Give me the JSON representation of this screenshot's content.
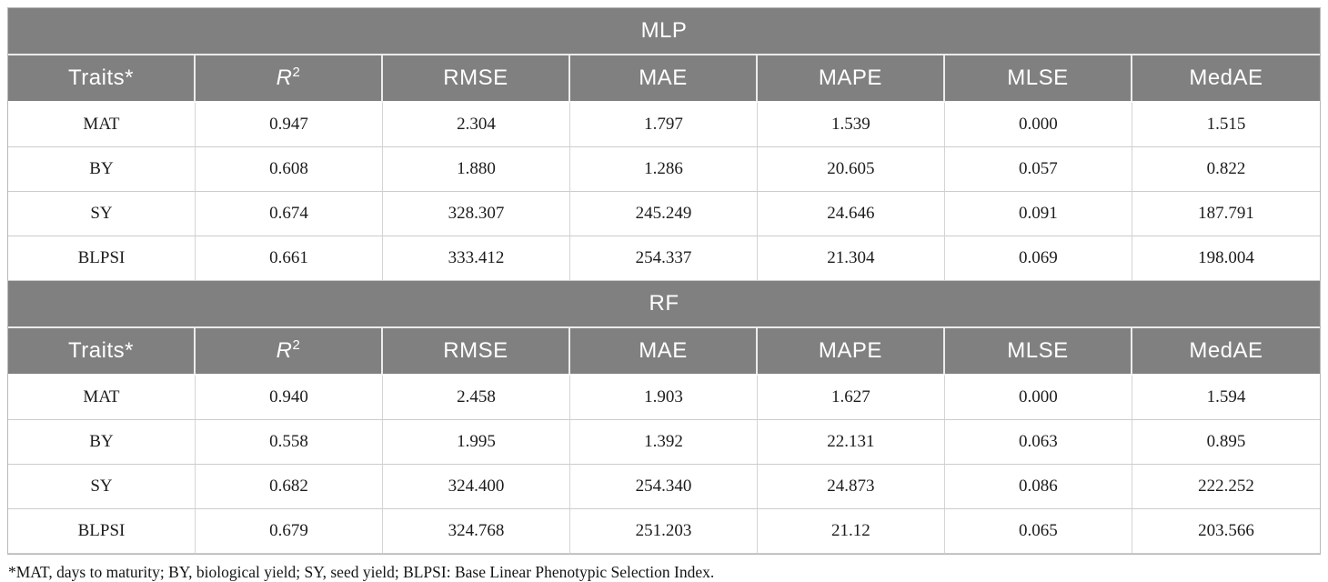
{
  "columns": [
    {
      "label": "Traits*"
    },
    {
      "label": "R",
      "sup": "2"
    },
    {
      "label": "RMSE"
    },
    {
      "label": "MAE"
    },
    {
      "label": "MAPE"
    },
    {
      "label": "MLSE"
    },
    {
      "label": "MedAE"
    }
  ],
  "sections": [
    {
      "title": "MLP",
      "rows": [
        {
          "trait": "MAT",
          "values": [
            "0.947",
            "2.304",
            "1.797",
            "1.539",
            "0.000",
            "1.515"
          ]
        },
        {
          "trait": "BY",
          "values": [
            "0.608",
            "1.880",
            "1.286",
            "20.605",
            "0.057",
            "0.822"
          ]
        },
        {
          "trait": "SY",
          "values": [
            "0.674",
            "328.307",
            "245.249",
            "24.646",
            "0.091",
            "187.791"
          ]
        },
        {
          "trait": "BLPSI",
          "values": [
            "0.661",
            "333.412",
            "254.337",
            "21.304",
            "0.069",
            "198.004"
          ]
        }
      ]
    },
    {
      "title": "RF",
      "rows": [
        {
          "trait": "MAT",
          "values": [
            "0.940",
            "2.458",
            "1.903",
            "1.627",
            "0.000",
            "1.594"
          ]
        },
        {
          "trait": "BY",
          "values": [
            "0.558",
            "1.995",
            "1.392",
            "22.131",
            "0.063",
            "0.895"
          ]
        },
        {
          "trait": "SY",
          "values": [
            "0.682",
            "324.400",
            "254.340",
            "24.873",
            "0.086",
            "222.252"
          ]
        },
        {
          "trait": "BLPSI",
          "values": [
            "0.679",
            "324.768",
            "251.203",
            "21.12",
            "0.065",
            "203.566"
          ]
        }
      ]
    }
  ],
  "footnote": "*MAT, days to maturity; BY, biological yield; SY, seed yield; BLPSI: Base Linear Phenotypic Selection Index.",
  "colors": {
    "header_bg": "#808080",
    "header_text": "#ffffff",
    "body_text": "#1c1c1c",
    "grid_line": "#cccccc"
  }
}
